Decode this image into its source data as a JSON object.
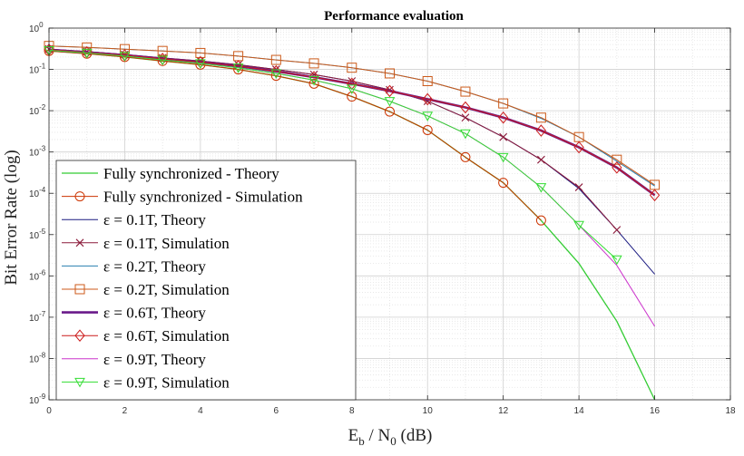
{
  "chart_data": {
    "type": "line",
    "title": "Performance evaluation",
    "xlabel": {
      "main": "E",
      "sub1": "b",
      "mid": " / N",
      "sub2": "0",
      "tail": " (dB)"
    },
    "ylabel": "Bit Error Rate (log)",
    "xlim": [
      0,
      18
    ],
    "ylim": [
      1e-09,
      1
    ],
    "yscale": "log",
    "grid": true,
    "legend_position": "bottom-left",
    "x_ticks": [
      0,
      2,
      4,
      6,
      8,
      10,
      12,
      14,
      16,
      18
    ],
    "y_tick_exponents": [
      0,
      -1,
      -2,
      -3,
      -4,
      -5,
      -6,
      -7,
      -8,
      -9
    ],
    "series": [
      {
        "name": "Fully synchronized - Theory",
        "color": "#33cc33",
        "marker": "none",
        "width": 1.3,
        "x": [
          0,
          1,
          2,
          3,
          4,
          5,
          6,
          7,
          8,
          9,
          10,
          11,
          12,
          13,
          14,
          15,
          16
        ],
        "y": [
          0.28,
          0.24,
          0.2,
          0.16,
          0.13,
          0.1,
          0.07,
          0.045,
          0.022,
          0.0095,
          0.0034,
          0.00075,
          0.00018,
          2.2e-05,
          2e-06,
          8e-08,
          1e-09
        ]
      },
      {
        "name": "Fully synchronized - Simulation",
        "color": "#cc3300",
        "marker": "circle",
        "width": 1.0,
        "x": [
          0,
          1,
          2,
          3,
          4,
          5,
          6,
          7,
          8,
          9,
          10,
          11,
          12,
          13
        ],
        "y": [
          0.28,
          0.24,
          0.2,
          0.16,
          0.13,
          0.1,
          0.07,
          0.045,
          0.022,
          0.0095,
          0.0034,
          0.00075,
          0.00018,
          2.2e-05
        ]
      },
      {
        "name": "ε = 0.1T, Theory",
        "color": "#1a1a80",
        "marker": "none",
        "width": 1.0,
        "x": [
          0,
          1,
          2,
          3,
          4,
          5,
          6,
          7,
          8,
          9,
          10,
          11,
          12,
          13,
          14,
          15,
          16
        ],
        "y": [
          0.31,
          0.27,
          0.23,
          0.19,
          0.16,
          0.13,
          0.1,
          0.075,
          0.052,
          0.032,
          0.017,
          0.0068,
          0.0023,
          0.00065,
          0.00013,
          1.3e-05,
          1.1e-06
        ]
      },
      {
        "name": "ε = 0.1T, Simulation",
        "color": "#8b1a3a",
        "marker": "x",
        "width": 1.0,
        "x": [
          0,
          1,
          2,
          3,
          4,
          5,
          6,
          7,
          8,
          9,
          10,
          11,
          12,
          13,
          14,
          15
        ],
        "y": [
          0.31,
          0.27,
          0.23,
          0.19,
          0.16,
          0.13,
          0.1,
          0.075,
          0.052,
          0.032,
          0.017,
          0.0068,
          0.0023,
          0.00065,
          0.00014,
          1.3e-05
        ]
      },
      {
        "name": "ε = 0.2T, Theory",
        "color": "#2a7fb0",
        "marker": "none",
        "width": 1.0,
        "x": [
          0,
          1,
          2,
          3,
          4,
          5,
          6,
          7,
          8,
          9,
          10,
          11,
          12,
          13,
          14,
          15,
          16
        ],
        "y": [
          0.37,
          0.34,
          0.31,
          0.28,
          0.25,
          0.21,
          0.17,
          0.14,
          0.11,
          0.08,
          0.052,
          0.029,
          0.015,
          0.0065,
          0.0023,
          0.0006,
          0.00015
        ]
      },
      {
        "name": "ε = 0.2T, Simulation",
        "color": "#cc5a1a",
        "marker": "square",
        "width": 1.0,
        "x": [
          0,
          1,
          2,
          3,
          4,
          5,
          6,
          7,
          8,
          9,
          10,
          11,
          12,
          13,
          14,
          15,
          16
        ],
        "y": [
          0.37,
          0.34,
          0.31,
          0.28,
          0.25,
          0.21,
          0.17,
          0.14,
          0.11,
          0.08,
          0.052,
          0.029,
          0.015,
          0.0068,
          0.0023,
          0.00065,
          0.00016
        ]
      },
      {
        "name": "ε = 0.6T, Theory",
        "color": "#6a1a8a",
        "marker": "none",
        "width": 2.6,
        "x": [
          0,
          1,
          2,
          3,
          4,
          5,
          6,
          7,
          8,
          9,
          10,
          11,
          12,
          13,
          14,
          15,
          16
        ],
        "y": [
          0.3,
          0.26,
          0.22,
          0.18,
          0.15,
          0.12,
          0.09,
          0.065,
          0.045,
          0.03,
          0.019,
          0.012,
          0.0068,
          0.0033,
          0.0013,
          0.00042,
          9e-05
        ]
      },
      {
        "name": "ε = 0.6T, Simulation",
        "color": "#cc1a1a",
        "marker": "diamond",
        "width": 1.0,
        "x": [
          0,
          1,
          2,
          3,
          4,
          5,
          6,
          7,
          8,
          9,
          10,
          11,
          12,
          13,
          14,
          15,
          16
        ],
        "y": [
          0.3,
          0.26,
          0.22,
          0.18,
          0.15,
          0.12,
          0.09,
          0.065,
          0.045,
          0.03,
          0.019,
          0.012,
          0.0068,
          0.0033,
          0.0013,
          0.00042,
          9e-05
        ]
      },
      {
        "name": "ε = 0.9T, Theory",
        "color": "#cc33cc",
        "marker": "none",
        "width": 1.0,
        "x": [
          0,
          1,
          2,
          3,
          4,
          5,
          6,
          7,
          8,
          9,
          10,
          11,
          12,
          13,
          14,
          15,
          16
        ],
        "y": [
          0.29,
          0.25,
          0.21,
          0.17,
          0.14,
          0.11,
          0.08,
          0.055,
          0.034,
          0.017,
          0.0075,
          0.0028,
          0.00075,
          0.00014,
          1.7e-05,
          1.8e-06,
          6e-08
        ]
      },
      {
        "name": "ε = 0.9T, Simulation",
        "color": "#33dd33",
        "marker": "triangle-down",
        "width": 1.0,
        "x": [
          0,
          1,
          2,
          3,
          4,
          5,
          6,
          7,
          8,
          9,
          10,
          11,
          12,
          13,
          14,
          15
        ],
        "y": [
          0.29,
          0.25,
          0.21,
          0.17,
          0.14,
          0.11,
          0.08,
          0.055,
          0.034,
          0.017,
          0.0075,
          0.0028,
          0.00075,
          0.00014,
          1.7e-05,
          2.5e-06
        ]
      }
    ]
  }
}
